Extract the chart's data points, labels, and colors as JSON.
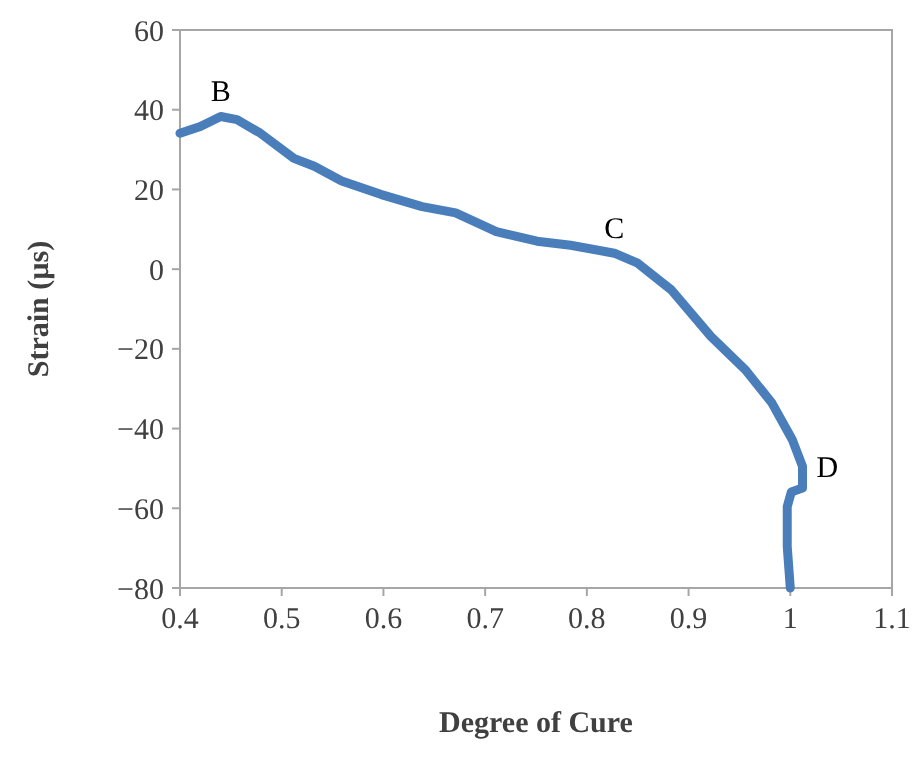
{
  "chart_data": {
    "type": "line",
    "xlabel": "Degree of Cure",
    "ylabel": "Strain (µs)",
    "xlim": [
      0.4,
      1.1
    ],
    "xticks": [
      0.4,
      0.5,
      0.6,
      0.7,
      0.8,
      0.9,
      1,
      1.1
    ],
    "ylim": [
      -80,
      60
    ],
    "yticks": [
      -80,
      -60,
      -40,
      -20,
      0,
      20,
      40,
      60
    ],
    "grid": false,
    "marker": "none",
    "line_style": "solid",
    "series": [
      {
        "color": "#4a7ebb",
        "x": [
          0.4,
          0.42,
          0.44,
          0.456,
          0.479,
          0.512,
          0.532,
          0.559,
          0.598,
          0.638,
          0.671,
          0.711,
          0.751,
          0.784,
          0.827,
          0.85,
          0.883,
          0.922,
          0.956,
          0.982,
          1.002,
          1.012,
          1.012,
          1.001,
          0.997,
          0.997,
          1.0
        ],
        "values": [
          34.1,
          35.8,
          38.3,
          37.5,
          34.1,
          27.8,
          25.8,
          22.1,
          18.7,
          15.7,
          14.1,
          9.4,
          7.0,
          6.0,
          4.0,
          1.5,
          -5.2,
          -16.9,
          -25.3,
          -33.6,
          -42.8,
          -49.5,
          -54.9,
          -55.9,
          -59.6,
          -69.6,
          -80
        ]
      }
    ],
    "annotations": [
      {
        "text": "B",
        "x": 0.44,
        "y": 38.3
      },
      {
        "text": "C",
        "x": 0.827,
        "y": 4.0
      },
      {
        "text": "D",
        "x": 1.012,
        "y": -49.5
      }
    ]
  }
}
